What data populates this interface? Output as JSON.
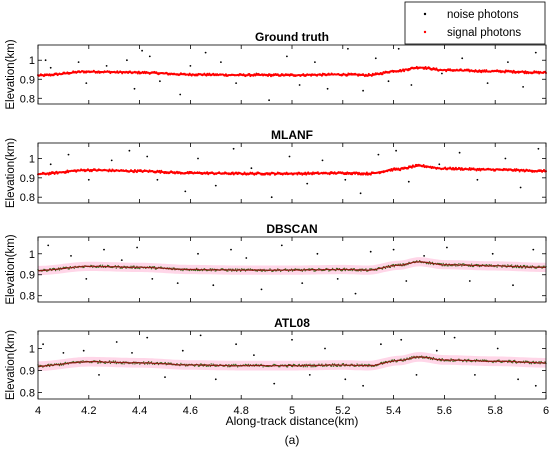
{
  "colors": {
    "signal": "#ff0000",
    "noise": "#000000",
    "fitted_line": "#8b1a10",
    "signal_band": "#ffd6e8",
    "axis": "#000000"
  },
  "legend": {
    "placement": "top-right",
    "items": [
      {
        "label": "noise photons",
        "marker": "dot",
        "color": "#000000"
      },
      {
        "label": "signal photons",
        "marker": "dot",
        "color": "#ff0000"
      }
    ]
  },
  "chart_data": [
    {
      "type": "scatter",
      "title": "Ground truth",
      "ylabel": "Elevation(km)",
      "xlim": [
        4,
        6
      ],
      "ylim": [
        0.77,
        1.08
      ],
      "yticks": [
        "0.8",
        "0.9",
        "1"
      ],
      "yticks_values": [
        0.8,
        0.9,
        1.0
      ],
      "style": "signal",
      "series": [
        {
          "name": "signal photons",
          "profile": [
            [
              4.0,
              0.92
            ],
            [
              4.2,
              0.94
            ],
            [
              4.4,
              0.935
            ],
            [
              4.6,
              0.925
            ],
            [
              4.8,
              0.922
            ],
            [
              5.0,
              0.922
            ],
            [
              5.2,
              0.925
            ],
            [
              5.3,
              0.922
            ],
            [
              5.42,
              0.945
            ],
            [
              5.5,
              0.962
            ],
            [
              5.6,
              0.948
            ],
            [
              5.8,
              0.942
            ],
            [
              6.0,
              0.935
            ]
          ]
        },
        {
          "name": "noise photons",
          "points": [
            [
              4.03,
              1.0
            ],
            [
              4.05,
              0.96
            ],
            [
              4.16,
              0.99
            ],
            [
              4.19,
              0.88
            ],
            [
              4.27,
              0.97
            ],
            [
              4.35,
              1.0
            ],
            [
              4.38,
              0.85
            ],
            [
              4.41,
              1.05
            ],
            [
              4.44,
              1.02
            ],
            [
              4.48,
              0.89
            ],
            [
              4.56,
              0.82
            ],
            [
              4.6,
              0.97
            ],
            [
              4.66,
              1.04
            ],
            [
              4.72,
              0.99
            ],
            [
              4.78,
              0.88
            ],
            [
              4.86,
              0.93
            ],
            [
              4.91,
              0.79
            ],
            [
              4.98,
              1.02
            ],
            [
              5.03,
              0.87
            ],
            [
              5.09,
              0.99
            ],
            [
              5.14,
              0.85
            ],
            [
              5.22,
              1.06
            ],
            [
              5.28,
              0.84
            ],
            [
              5.33,
              1.01
            ],
            [
              5.38,
              0.89
            ],
            [
              5.42,
              1.06
            ],
            [
              5.47,
              0.87
            ],
            [
              5.59,
              0.93
            ],
            [
              5.67,
              1.01
            ],
            [
              5.77,
              0.88
            ],
            [
              5.85,
              0.99
            ],
            [
              5.91,
              0.86
            ],
            [
              5.96,
              1.04
            ]
          ]
        }
      ]
    },
    {
      "type": "scatter",
      "title": "MLANF",
      "ylabel": "Elevation(km)",
      "xlim": [
        4,
        6
      ],
      "ylim": [
        0.77,
        1.08
      ],
      "yticks": [
        "0.8",
        "0.9",
        "1"
      ],
      "yticks_values": [
        0.8,
        0.9,
        1.0
      ],
      "style": "signal",
      "series": [
        {
          "name": "signal photons",
          "profile": [
            [
              4.0,
              0.92
            ],
            [
              4.2,
              0.94
            ],
            [
              4.4,
              0.935
            ],
            [
              4.6,
              0.925
            ],
            [
              4.8,
              0.922
            ],
            [
              5.0,
              0.922
            ],
            [
              5.2,
              0.925
            ],
            [
              5.3,
              0.922
            ],
            [
              5.42,
              0.945
            ],
            [
              5.5,
              0.962
            ],
            [
              5.6,
              0.948
            ],
            [
              5.8,
              0.942
            ],
            [
              6.0,
              0.935
            ]
          ]
        },
        {
          "name": "noise photons",
          "points": [
            [
              4.05,
              0.97
            ],
            [
              4.12,
              1.02
            ],
            [
              4.2,
              0.89
            ],
            [
              4.29,
              0.99
            ],
            [
              4.36,
              1.04
            ],
            [
              4.43,
              1.01
            ],
            [
              4.47,
              0.89
            ],
            [
              4.58,
              0.83
            ],
            [
              4.63,
              1.0
            ],
            [
              4.7,
              0.86
            ],
            [
              4.77,
              1.05
            ],
            [
              4.84,
              0.95
            ],
            [
              4.92,
              0.8
            ],
            [
              4.99,
              1.01
            ],
            [
              5.06,
              0.87
            ],
            [
              5.12,
              0.99
            ],
            [
              5.21,
              0.89
            ],
            [
              5.27,
              0.82
            ],
            [
              5.34,
              1.02
            ],
            [
              5.41,
              1.04
            ],
            [
              5.46,
              0.88
            ],
            [
              5.58,
              0.97
            ],
            [
              5.66,
              1.03
            ],
            [
              5.73,
              0.89
            ],
            [
              5.84,
              1.0
            ],
            [
              5.9,
              0.85
            ],
            [
              5.97,
              1.05
            ]
          ]
        }
      ]
    },
    {
      "type": "scatter",
      "title": "DBSCAN",
      "ylabel": "Elevation(km)",
      "xlim": [
        4,
        6
      ],
      "ylim": [
        0.77,
        1.08
      ],
      "yticks": [
        "0.8",
        "0.9",
        "1"
      ],
      "yticks_values": [
        0.8,
        0.9,
        1.0
      ],
      "style": "fitted",
      "series": [
        {
          "name": "signal photons",
          "profile": [
            [
              4.0,
              0.92
            ],
            [
              4.2,
              0.94
            ],
            [
              4.4,
              0.935
            ],
            [
              4.6,
              0.925
            ],
            [
              4.8,
              0.922
            ],
            [
              5.0,
              0.922
            ],
            [
              5.2,
              0.925
            ],
            [
              5.3,
              0.922
            ],
            [
              5.42,
              0.945
            ],
            [
              5.5,
              0.962
            ],
            [
              5.6,
              0.948
            ],
            [
              5.8,
              0.942
            ],
            [
              6.0,
              0.935
            ]
          ]
        },
        {
          "name": "noise photons",
          "points": [
            [
              4.04,
              1.04
            ],
            [
              4.13,
              0.99
            ],
            [
              4.19,
              0.88
            ],
            [
              4.26,
              1.02
            ],
            [
              4.33,
              0.97
            ],
            [
              4.39,
              1.03
            ],
            [
              4.45,
              0.88
            ],
            [
              4.55,
              0.86
            ],
            [
              4.63,
              1.0
            ],
            [
              4.69,
              0.85
            ],
            [
              4.76,
              1.02
            ],
            [
              4.82,
              0.98
            ],
            [
              4.88,
              0.83
            ],
            [
              4.96,
              1.04
            ],
            [
              5.04,
              0.86
            ],
            [
              5.1,
              1.0
            ],
            [
              5.18,
              0.88
            ],
            [
              5.25,
              0.81
            ],
            [
              5.31,
              1.01
            ],
            [
              5.4,
              1.02
            ],
            [
              5.45,
              0.87
            ],
            [
              5.52,
              0.99
            ],
            [
              5.61,
              1.03
            ],
            [
              5.7,
              0.87
            ],
            [
              5.79,
              1.0
            ],
            [
              5.87,
              0.85
            ],
            [
              5.95,
              1.02
            ]
          ]
        }
      ]
    },
    {
      "type": "scatter",
      "title": "ATL08",
      "ylabel": "Elevation(km)",
      "xlim": [
        4,
        6
      ],
      "ylim": [
        0.77,
        1.08
      ],
      "yticks": [
        "0.8",
        "0.9",
        "1"
      ],
      "yticks_values": [
        0.8,
        0.9,
        1.0
      ],
      "style": "fitted",
      "series": [
        {
          "name": "signal photons",
          "profile": [
            [
              4.0,
              0.92
            ],
            [
              4.2,
              0.94
            ],
            [
              4.4,
              0.935
            ],
            [
              4.6,
              0.925
            ],
            [
              4.8,
              0.922
            ],
            [
              5.0,
              0.922
            ],
            [
              5.2,
              0.925
            ],
            [
              5.3,
              0.922
            ],
            [
              5.42,
              0.945
            ],
            [
              5.5,
              0.962
            ],
            [
              5.6,
              0.948
            ],
            [
              5.8,
              0.942
            ],
            [
              6.0,
              0.935
            ]
          ]
        },
        {
          "name": "noise photons",
          "points": [
            [
              4.02,
              1.02
            ],
            [
              4.1,
              0.98
            ],
            [
              4.18,
              0.99
            ],
            [
              4.24,
              0.88
            ],
            [
              4.31,
              1.03
            ],
            [
              4.37,
              0.98
            ],
            [
              4.43,
              1.05
            ],
            [
              4.5,
              0.87
            ],
            [
              4.57,
              0.99
            ],
            [
              4.64,
              1.06
            ],
            [
              4.7,
              0.86
            ],
            [
              4.78,
              1.02
            ],
            [
              4.85,
              0.97
            ],
            [
              4.93,
              0.84
            ],
            [
              5.0,
              1.04
            ],
            [
              5.07,
              0.88
            ],
            [
              5.13,
              1.0
            ],
            [
              5.21,
              0.86
            ],
            [
              5.28,
              0.83
            ],
            [
              5.35,
              1.02
            ],
            [
              5.43,
              1.04
            ],
            [
              5.49,
              0.88
            ],
            [
              5.57,
              0.99
            ],
            [
              5.64,
              1.05
            ],
            [
              5.72,
              0.88
            ],
            [
              5.81,
              1.0
            ],
            [
              5.89,
              0.86
            ],
            [
              5.96,
              0.83
            ]
          ]
        }
      ]
    }
  ],
  "shared_x": {
    "label": "Along-track distance(km)",
    "ticks": [
      "4",
      "4.2",
      "4.4",
      "4.6",
      "4.8",
      "5",
      "5.2",
      "5.4",
      "5.6",
      "5.8",
      "6"
    ],
    "ticks_values": [
      4.0,
      4.2,
      4.4,
      4.6,
      4.8,
      5.0,
      5.2,
      5.4,
      5.6,
      5.8,
      6.0
    ]
  },
  "caption": "(a)"
}
